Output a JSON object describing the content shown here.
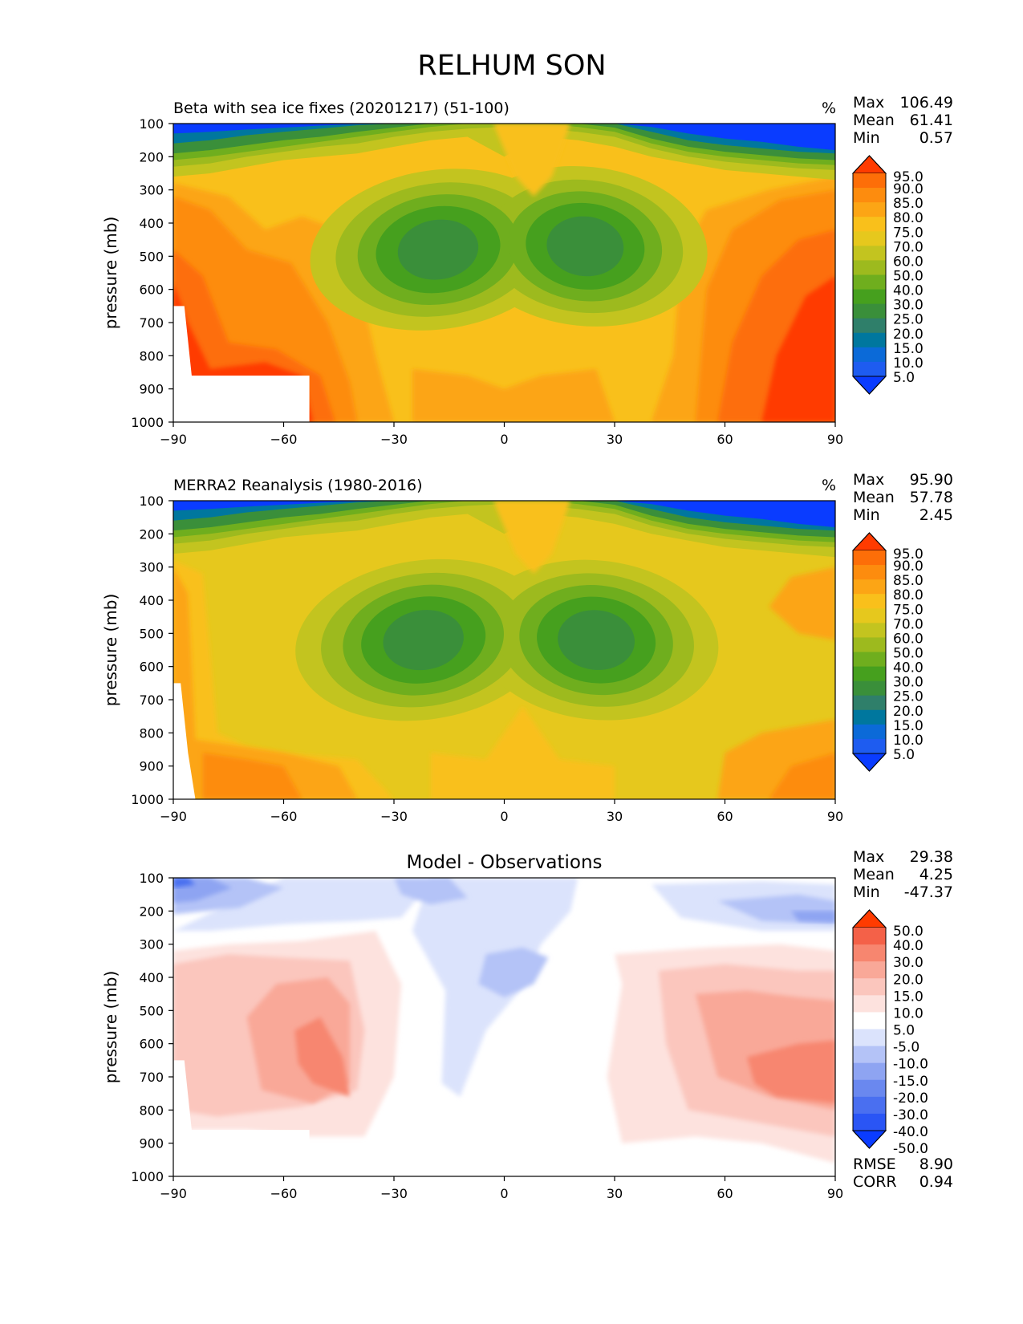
{
  "figure_title": "RELHUM SON",
  "y_axis_label": "pressure (mb)",
  "x_ticks": [
    "−90",
    "−60",
    "−30",
    "0",
    "30",
    "60",
    "90"
  ],
  "y_ticks": [
    "100",
    "200",
    "300",
    "400",
    "500",
    "600",
    "700",
    "800",
    "900",
    "1000"
  ],
  "colors": {
    "field_scale": [
      "#0a3cff",
      "#1e5cf0",
      "#0b6ad8",
      "#00779e",
      "#2f7f6a",
      "#3a8f3a",
      "#46a01e",
      "#6fae1e",
      "#9dba1e",
      "#c3c41f",
      "#e6c81d",
      "#f9c01b",
      "#fca515",
      "#fd8c0e",
      "#fd6e08",
      "#ff3b00"
    ],
    "diff_scale": [
      "#0a3cff",
      "#2a55f5",
      "#4a6ff0",
      "#6a88ef",
      "#8ea4f2",
      "#b4c3f7",
      "#dbe3fc",
      "#ffffff",
      "#fde2de",
      "#fbc6bd",
      "#f9a898",
      "#f7866f",
      "#f46148",
      "#ff3b00"
    ]
  },
  "chart_data": [
    {
      "type": "heatmap",
      "title": "Beta with sea ice fixes (20201217) (51-100)",
      "units": "%",
      "stats": [
        {
          "label": "Max",
          "value": "106.49"
        },
        {
          "label": "Mean",
          "value": "61.41"
        },
        {
          "label": "Min",
          "value": "0.57"
        }
      ],
      "colorbar_levels": [
        "95.0",
        "90.0",
        "85.0",
        "80.0",
        "75.0",
        "70.0",
        "60.0",
        "50.0",
        "40.0",
        "30.0",
        "25.0",
        "20.0",
        "15.0",
        "10.0",
        "5.0"
      ],
      "xlim": [
        -90,
        90
      ],
      "ylim": [
        1000,
        100
      ],
      "zonal_rh_lower": [
        99,
        97,
        91,
        84,
        82,
        76,
        65,
        66,
        73,
        77,
        73,
        64,
        69,
        81,
        86,
        90,
        93,
        95,
        98
      ],
      "zonal_rh_upper": [
        2,
        3,
        8,
        20,
        30,
        55,
        65,
        72,
        62,
        68,
        64,
        68,
        63,
        48,
        30,
        15,
        4,
        2,
        1
      ],
      "notes": [
        "Dry minima (~20%) near 20S and 20N at 400-600 mb",
        "Moist maxima (>95%) near poles in lower troposphere"
      ]
    },
    {
      "type": "heatmap",
      "title": "MERRA2 Reanalysis (1980-2016)",
      "units": "%",
      "stats": [
        {
          "label": "Max",
          "value": "95.90"
        },
        {
          "label": "Mean",
          "value": "57.78"
        },
        {
          "label": "Min",
          "value": "2.45"
        }
      ],
      "colorbar_levels": [
        "95.0",
        "90.0",
        "85.0",
        "80.0",
        "75.0",
        "70.0",
        "60.0",
        "50.0",
        "40.0",
        "30.0",
        "25.0",
        "20.0",
        "15.0",
        "10.0",
        "5.0"
      ],
      "xlim": [
        -90,
        90
      ],
      "ylim": [
        1000,
        100
      ]
    },
    {
      "type": "heatmap",
      "title": "Model - Observations",
      "stats": [
        {
          "label": "Max",
          "value": "29.38"
        },
        {
          "label": "Mean",
          "value": "4.25"
        },
        {
          "label": "Min",
          "value": "-47.37"
        }
      ],
      "colorbar_levels": [
        "50.0",
        "40.0",
        "30.0",
        "20.0",
        "15.0",
        "10.0",
        "5.0",
        "-5.0",
        "-10.0",
        "-15.0",
        "-20.0",
        "-30.0",
        "-40.0",
        "-50.0"
      ],
      "footer_stats": [
        {
          "label": "RMSE",
          "value": "8.90"
        },
        {
          "label": "CORR",
          "value": "0.94"
        }
      ],
      "xlim": [
        -90,
        90
      ],
      "ylim": [
        1000,
        100
      ]
    }
  ]
}
